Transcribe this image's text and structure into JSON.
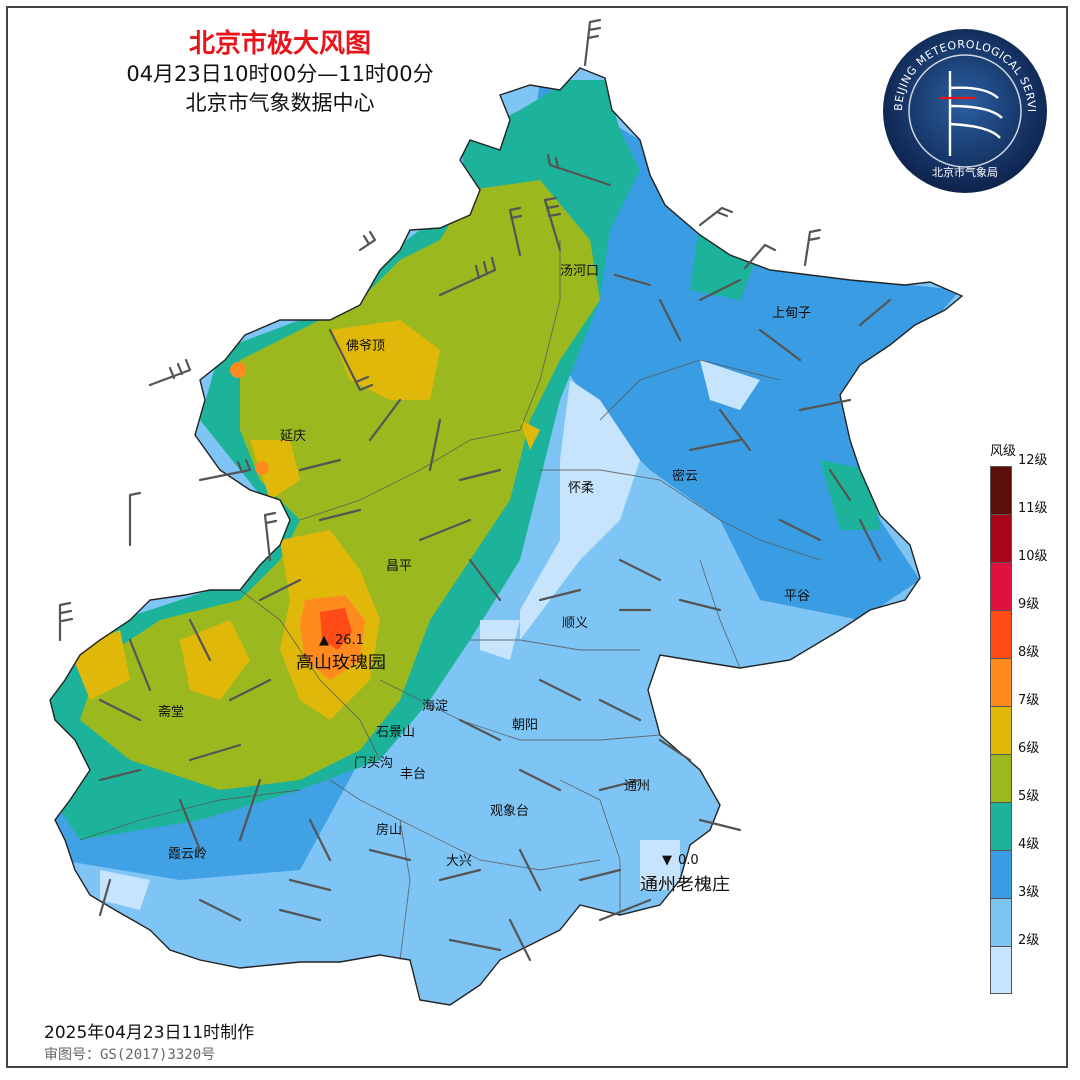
{
  "header": {
    "title": "北京市极大风图",
    "time_range": "04月23日10时00分—11时00分",
    "agency": "北京市气象数据中心"
  },
  "logo": {
    "ring_text": "BEIJING METEOROLOGICAL SERVICE",
    "cn_text": "北京市气象局"
  },
  "legend": {
    "title": "风级",
    "levels": [
      {
        "label": "12级",
        "color": "#5a0f0a"
      },
      {
        "label": "11级",
        "color": "#a8071a"
      },
      {
        "label": "10级",
        "color": "#e0113f"
      },
      {
        "label": "9级",
        "color": "#ff4b16"
      },
      {
        "label": "8级",
        "color": "#ff8b1f"
      },
      {
        "label": "7级",
        "color": "#e0b80a"
      },
      {
        "label": "6级",
        "color": "#9cb81f"
      },
      {
        "label": "5级",
        "color": "#1db39a"
      },
      {
        "label": "4级",
        "color": "#3a9de3"
      },
      {
        "label": "3级",
        "color": "#7ec4f5"
      },
      {
        "label": "2级",
        "color": "#c6e4fb"
      }
    ]
  },
  "places": {
    "tanghekou": "汤河口",
    "shangdianzi": "上甸子",
    "foyeding": "佛爷顶",
    "yanqing": "延庆",
    "huairou": "怀柔",
    "miyun": "密云",
    "changping": "昌平",
    "pinggu": "平谷",
    "shunyi": "顺义",
    "zhaitang": "斋堂",
    "haidian": "海淀",
    "chaoyang": "朝阳",
    "shijingshan": "石景山",
    "mentougou": "门头沟",
    "fengtai": "丰台",
    "tongzhou": "通州",
    "guanxiangtai": "观象台",
    "fangshan": "房山",
    "daxing": "大兴",
    "xiayunling": "霞云岭"
  },
  "extremes": {
    "max": {
      "marker": "▲",
      "value": "26.1",
      "station": "高山玫瑰园"
    },
    "min": {
      "marker": "▼",
      "value": "0.0",
      "station": "通州老槐庄"
    }
  },
  "footer": {
    "made": "2025年04月23日11时制作",
    "review_no": "审图号：GS(2017)3320号"
  }
}
